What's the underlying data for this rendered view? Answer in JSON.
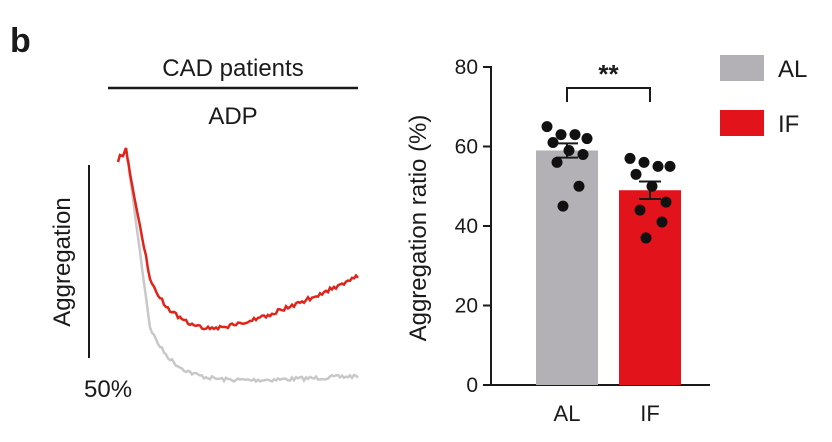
{
  "panel_label": "b",
  "trace_panel": {
    "header_top": "CAD patients",
    "header_bottom": "ADP",
    "y_label": "Aggregation",
    "scale_label": "50%",
    "colors": {
      "AL": "#c8c8c8",
      "IF": "#e2231a"
    }
  },
  "chart_data": {
    "type": "bar",
    "categories": [
      "AL",
      "IF"
    ],
    "values": [
      59,
      49
    ],
    "sem": [
      1.8,
      2.2
    ],
    "ylabel": "Aggregation ratio (%)",
    "xlabel": "",
    "ylim": [
      0,
      80
    ],
    "yticks": [
      0,
      20,
      40,
      60,
      80
    ],
    "colors": [
      "#b3b1b5",
      "#e2131a"
    ],
    "points": [
      [
        65,
        63,
        63,
        62,
        61,
        59,
        58,
        56,
        50,
        45
      ],
      [
        57,
        56,
        55,
        55,
        53,
        50,
        46,
        44,
        41,
        37
      ]
    ],
    "significance": {
      "label": "**",
      "between": [
        "AL",
        "IF"
      ]
    },
    "grid": false,
    "legend": {
      "position": "top-right",
      "entries": [
        {
          "label": "AL",
          "color": "#b3b1b5"
        },
        {
          "label": "IF",
          "color": "#e2131a"
        }
      ]
    }
  }
}
